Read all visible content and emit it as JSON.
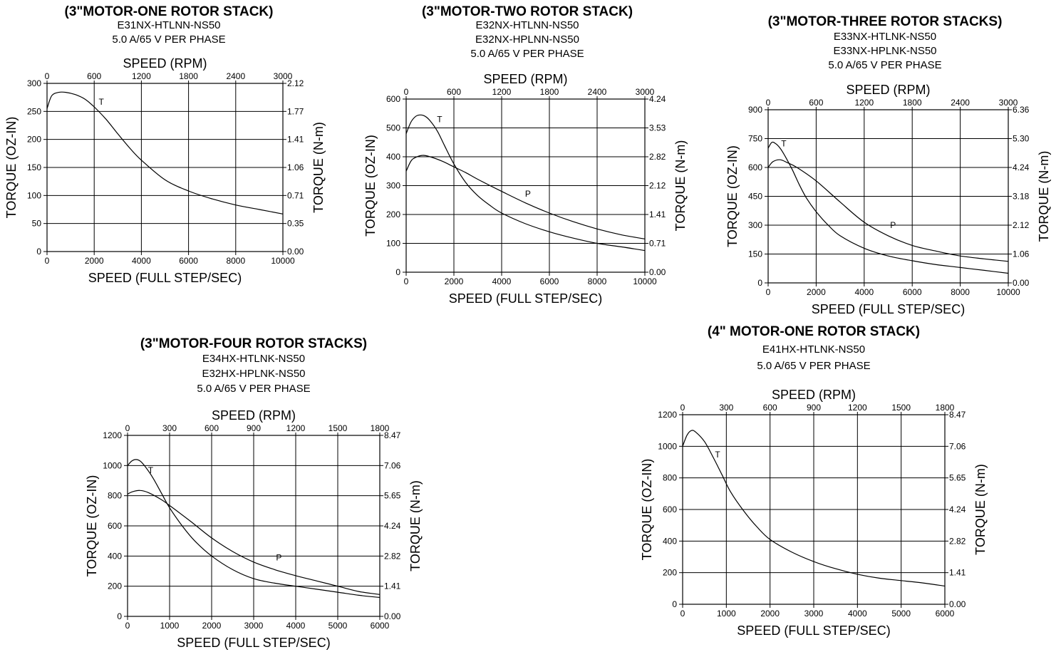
{
  "chart_data": [
    {
      "type": "line",
      "title": "(3\"MOTOR-ONE ROTOR STACK)",
      "subtitle_lines": [
        "E31NX-HTLNN-NS50",
        "5.0 A/65 V PER PHASE"
      ],
      "top_axis_label": "SPEED (RPM)",
      "xlabel": "SPEED (FULL STEP/SEC)",
      "ylabel": "TORQUE (OZ-IN)",
      "y2label": "TORQUE (N-m)",
      "xlim": [
        0,
        10000
      ],
      "ylim": [
        0,
        300
      ],
      "x_ticks": [
        0,
        2000,
        4000,
        6000,
        8000,
        10000
      ],
      "y_ticks": [
        0,
        50,
        100,
        150,
        200,
        250,
        300
      ],
      "top_ticks": [
        "0",
        "600",
        "1200",
        "1800",
        "2400",
        "3000"
      ],
      "right_ticks": [
        "0.00",
        "0.35",
        "0.71",
        "1.06",
        "1.41",
        "1.77",
        "2.12"
      ],
      "grid": true,
      "series": [
        {
          "name": "T",
          "label_at": [
            2300,
            262
          ],
          "x": [
            0,
            200,
            500,
            800,
            1200,
            1600,
            2000,
            2500,
            3000,
            3500,
            4000,
            5000,
            6000,
            7000,
            8000,
            9000,
            10000
          ],
          "y": [
            255,
            278,
            284,
            284,
            280,
            272,
            258,
            236,
            210,
            185,
            163,
            128,
            108,
            94,
            83,
            75,
            67
          ]
        }
      ]
    },
    {
      "type": "line",
      "title": "(3\"MOTOR-TWO ROTOR STACK)",
      "subtitle_lines": [
        "E32NX-HTLNN-NS50",
        "E32NX-HPLNN-NS50",
        "5.0 A/65 V PER PHASE"
      ],
      "top_axis_label": "SPEED (RPM)",
      "xlabel": "SPEED (FULL STEP/SEC)",
      "ylabel": "TORQUE (OZ-IN)",
      "y2label": "TORQUE (N-m)",
      "xlim": [
        0,
        10000
      ],
      "ylim": [
        0,
        600
      ],
      "x_ticks": [
        0,
        2000,
        4000,
        6000,
        8000,
        10000
      ],
      "y_ticks": [
        0,
        100,
        200,
        300,
        400,
        500,
        600
      ],
      "top_ticks": [
        "0",
        "600",
        "1200",
        "1800",
        "2400",
        "3000"
      ],
      "right_ticks": [
        "0.00",
        "0.71",
        "1.41",
        "2.12",
        "2.82",
        "3.53",
        "4.24"
      ],
      "grid": true,
      "series": [
        {
          "name": "T",
          "label_at": [
            1400,
            520
          ],
          "x": [
            0,
            200,
            400,
            600,
            800,
            1000,
            1300,
            1600,
            2000,
            2500,
            3000,
            3500,
            4000,
            5000,
            6000,
            7000,
            8000,
            9000,
            10000
          ],
          "y": [
            480,
            520,
            540,
            545,
            540,
            525,
            490,
            440,
            375,
            310,
            265,
            232,
            205,
            168,
            140,
            118,
            100,
            88,
            75
          ]
        },
        {
          "name": "P",
          "label_at": [
            5100,
            262
          ],
          "x": [
            0,
            200,
            400,
            700,
            1000,
            1500,
            2000,
            2500,
            3000,
            4000,
            5000,
            6000,
            7000,
            8000,
            9000,
            10000
          ],
          "y": [
            350,
            385,
            398,
            405,
            400,
            385,
            365,
            345,
            322,
            280,
            240,
            205,
            175,
            150,
            130,
            115
          ]
        }
      ]
    },
    {
      "type": "line",
      "title": "(3\"MOTOR-THREE ROTOR STACKS)",
      "subtitle_lines": [
        "E33NX-HTLNK-NS50",
        "E33NX-HPLNK-NS50",
        "5.0 A/65 V PER PHASE"
      ],
      "top_axis_label": "SPEED (RPM)",
      "xlabel": "SPEED (FULL STEP/SEC)",
      "ylabel": "TORQUE (OZ-IN)",
      "y2label": "TORQUE (N-m)",
      "xlim": [
        0,
        10000
      ],
      "ylim": [
        0,
        900
      ],
      "x_ticks": [
        0,
        2000,
        4000,
        6000,
        8000,
        10000
      ],
      "y_ticks": [
        0,
        150,
        300,
        450,
        600,
        750,
        900
      ],
      "top_ticks": [
        "0",
        "600",
        "1200",
        "1800",
        "2400",
        "3000"
      ],
      "right_ticks": [
        "0.00",
        "1.06",
        "2.12",
        "3.18",
        "4.24",
        "5.30",
        "6.36"
      ],
      "grid": true,
      "series": [
        {
          "name": "T",
          "label_at": [
            650,
            710
          ],
          "x": [
            0,
            150,
            300,
            500,
            700,
            1000,
            1300,
            1600,
            2000,
            2500,
            3000,
            4000,
            5000,
            6000,
            7000,
            8000,
            9000,
            10000
          ],
          "y": [
            700,
            730,
            725,
            700,
            660,
            590,
            510,
            440,
            370,
            300,
            245,
            180,
            140,
            115,
            95,
            80,
            65,
            50
          ]
        },
        {
          "name": "P",
          "label_at": [
            5200,
            285
          ],
          "x": [
            0,
            200,
            500,
            800,
            1200,
            2000,
            3000,
            4000,
            5000,
            6000,
            7000,
            8000,
            9000,
            10000
          ],
          "y": [
            600,
            630,
            640,
            625,
            600,
            530,
            420,
            315,
            245,
            195,
            165,
            140,
            125,
            112
          ]
        }
      ]
    },
    {
      "type": "line",
      "title": "(3\"MOTOR-FOUR ROTOR STACKS)",
      "subtitle_lines": [
        "E34HX-HTLNK-NS50",
        "E32HX-HPLNK-NS50",
        "5.0 A/65 V PER PHASE"
      ],
      "top_axis_label": "SPEED (RPM)",
      "xlabel": "SPEED (FULL STEP/SEC)",
      "ylabel": "TORQUE (OZ-IN)",
      "y2label": "TORQUE (N-m)",
      "xlim": [
        0,
        6000
      ],
      "ylim": [
        0,
        1200
      ],
      "x_ticks": [
        0,
        1000,
        2000,
        3000,
        4000,
        5000,
        6000
      ],
      "y_ticks": [
        0,
        200,
        400,
        600,
        800,
        1000,
        1200
      ],
      "top_ticks": [
        "0",
        "300",
        "600",
        "900",
        "1200",
        "1500",
        "1800"
      ],
      "right_ticks": [
        "0.00",
        "1.41",
        "2.82",
        "4.24",
        "5.65",
        "7.06",
        "8.47"
      ],
      "grid": true,
      "series": [
        {
          "name": "T",
          "label_at": [
            550,
            950
          ],
          "x": [
            0,
            100,
            200,
            300,
            400,
            600,
            800,
            1000,
            1300,
            1600,
            2000,
            2500,
            3000,
            3500,
            4000,
            4500,
            5000,
            5500,
            6000
          ],
          "y": [
            1000,
            1030,
            1040,
            1030,
            1000,
            920,
            820,
            720,
            600,
            500,
            400,
            310,
            250,
            220,
            200,
            180,
            160,
            140,
            125
          ]
        },
        {
          "name": "P",
          "label_at": [
            3600,
            370
          ],
          "x": [
            0,
            100,
            300,
            500,
            800,
            1000,
            1500,
            2000,
            2500,
            3000,
            3500,
            4000,
            4500,
            5000,
            5500,
            6000
          ],
          "y": [
            810,
            825,
            835,
            820,
            775,
            735,
            630,
            520,
            430,
            360,
            310,
            270,
            235,
            200,
            165,
            145
          ]
        }
      ]
    },
    {
      "type": "line",
      "title": "(4\" MOTOR-ONE ROTOR STACK)",
      "subtitle_lines": [
        "E41HX-HTLNK-NS50",
        "5.0 A/65 V PER PHASE"
      ],
      "top_axis_label": "SPEED (RPM)",
      "xlabel": "SPEED (FULL STEP/SEC)",
      "ylabel": "TORQUE (OZ-IN)",
      "y2label": "TORQUE (N-m)",
      "xlim": [
        0,
        6000
      ],
      "ylim": [
        0,
        1200
      ],
      "x_ticks": [
        0,
        1000,
        2000,
        3000,
        4000,
        5000,
        6000
      ],
      "y_ticks": [
        0,
        200,
        400,
        600,
        800,
        1000,
        1200
      ],
      "top_ticks": [
        "0",
        "300",
        "600",
        "900",
        "1200",
        "1500",
        "1800"
      ],
      "right_ticks": [
        "0.00",
        "1.41",
        "2.82",
        "4.24",
        "5.65",
        "7.06",
        "8.47"
      ],
      "grid": true,
      "series": [
        {
          "name": "T",
          "label_at": [
            800,
            930
          ],
          "x": [
            0,
            100,
            200,
            300,
            500,
            700,
            900,
            1100,
            1400,
            1700,
            2000,
            2500,
            3000,
            3500,
            4000,
            4500,
            5000,
            5500,
            6000
          ],
          "y": [
            1000,
            1070,
            1100,
            1090,
            1030,
            930,
            820,
            710,
            590,
            490,
            410,
            330,
            270,
            225,
            190,
            165,
            150,
            135,
            115
          ]
        }
      ]
    }
  ]
}
